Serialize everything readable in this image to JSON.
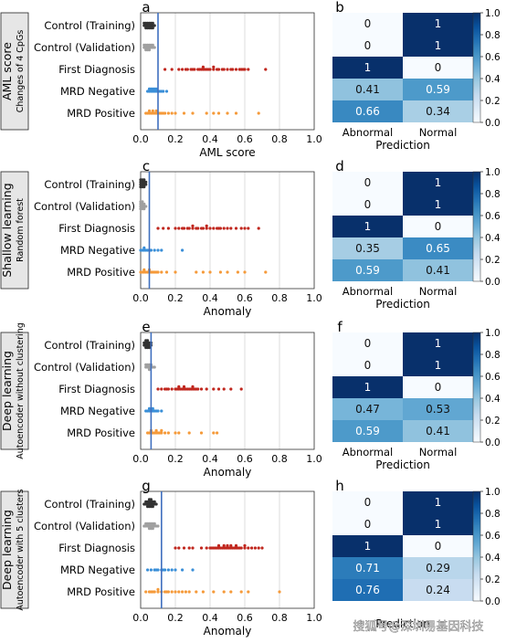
{
  "chart_data": [
    {
      "type": "scatter",
      "panel": "a",
      "side_title": "AML score",
      "side_subtitle": "Changes of 4 CpGs",
      "xlabel": "AML score",
      "xlim": [
        0,
        1
      ],
      "xticks": [
        "0.0",
        "0.2",
        "0.4",
        "0.6",
        "0.8",
        "1.0"
      ],
      "threshold": 0.1,
      "categories": [
        "Control (Training)",
        "Control (Validation)",
        "First Diagnosis",
        "MRD Negative",
        "MRD Positive"
      ],
      "colors": [
        "#333333",
        "#a0a0a0",
        "#c0271e",
        "#3a8fd8",
        "#f59a3a"
      ],
      "series": [
        {
          "values": [
            0.02,
            0.03,
            0.04,
            0.05,
            0.06,
            0.07,
            0.08,
            0.03,
            0.04,
            0.05,
            0.06,
            0.07,
            0.02,
            0.03,
            0.05,
            0.06,
            0.04,
            0.07
          ]
        },
        {
          "values": [
            0.02,
            0.03,
            0.04,
            0.05,
            0.06,
            0.07,
            0.08,
            0.03,
            0.04,
            0.05,
            0.06,
            0.02,
            0.03,
            0.04,
            0.05,
            0.07
          ]
        },
        {
          "values": [
            0.14,
            0.18,
            0.22,
            0.24,
            0.26,
            0.27,
            0.29,
            0.3,
            0.31,
            0.33,
            0.34,
            0.35,
            0.36,
            0.37,
            0.38,
            0.39,
            0.4,
            0.42,
            0.44,
            0.45,
            0.47,
            0.5,
            0.52,
            0.55,
            0.57,
            0.58,
            0.6,
            0.62,
            0.72,
            0.36,
            0.42,
            0.48,
            0.53,
            0.59
          ]
        },
        {
          "values": [
            0.04,
            0.05,
            0.06,
            0.07,
            0.08,
            0.09,
            0.1,
            0.11,
            0.12,
            0.13,
            0.15,
            0.05,
            0.07,
            0.09,
            0.06,
            0.08
          ]
        },
        {
          "values": [
            0.03,
            0.04,
            0.05,
            0.06,
            0.07,
            0.08,
            0.09,
            0.1,
            0.12,
            0.14,
            0.16,
            0.18,
            0.2,
            0.25,
            0.3,
            0.38,
            0.42,
            0.45,
            0.5,
            0.55,
            0.68,
            0.05,
            0.07,
            0.09,
            0.11,
            0.13
          ]
        }
      ]
    },
    {
      "type": "heatmap",
      "panel": "b",
      "xlabel": "Prediction",
      "columns": [
        "Abnormal",
        "Normal"
      ],
      "values": [
        [
          0,
          1
        ],
        [
          0,
          1
        ],
        [
          1,
          0
        ],
        [
          0.41,
          0.59
        ],
        [
          0.66,
          0.34
        ]
      ],
      "labels": [
        [
          "0",
          "1"
        ],
        [
          "0",
          "1"
        ],
        [
          "1",
          "0"
        ],
        [
          "0.41",
          "0.59"
        ],
        [
          "0.66",
          "0.34"
        ]
      ],
      "colorbar_ticks": [
        "0.0",
        "0.2",
        "0.4",
        "0.6",
        "0.8",
        "1.0"
      ],
      "colormap": "Blues"
    },
    {
      "type": "scatter",
      "panel": "c",
      "side_title": "Shallow learning",
      "side_subtitle": "Random forest",
      "xlabel": "Anomaly",
      "xlim": [
        0,
        1
      ],
      "xticks": [
        "0.0",
        "0.2",
        "0.4",
        "0.6",
        "0.8",
        "1.0"
      ],
      "threshold": 0.05,
      "categories": [
        "Control (Training)",
        "Control (Validation)",
        "First Diagnosis",
        "MRD Negative",
        "MRD Positive"
      ],
      "colors": [
        "#333333",
        "#a0a0a0",
        "#c0271e",
        "#3a8fd8",
        "#f59a3a"
      ],
      "series": [
        {
          "values": [
            0.0,
            0.01,
            0.02,
            0.03,
            0.0,
            0.01,
            0.02,
            0.0,
            0.01,
            0.02,
            0.03,
            0.0,
            0.01,
            0.02
          ]
        },
        {
          "values": [
            0.0,
            0.01,
            0.02,
            0.03,
            0.0,
            0.01,
            0.02,
            0.0,
            0.01,
            0.02,
            0.0,
            0.01
          ]
        },
        {
          "values": [
            0.1,
            0.13,
            0.16,
            0.2,
            0.22,
            0.24,
            0.25,
            0.27,
            0.28,
            0.3,
            0.32,
            0.33,
            0.35,
            0.36,
            0.38,
            0.4,
            0.42,
            0.44,
            0.46,
            0.48,
            0.5,
            0.52,
            0.55,
            0.58,
            0.6,
            0.62,
            0.68,
            0.3,
            0.38,
            0.45
          ]
        },
        {
          "values": [
            0.0,
            0.01,
            0.02,
            0.03,
            0.04,
            0.06,
            0.08,
            0.1,
            0.12,
            0.24,
            0.02,
            0.05
          ]
        },
        {
          "values": [
            0.0,
            0.01,
            0.02,
            0.03,
            0.04,
            0.05,
            0.06,
            0.07,
            0.08,
            0.1,
            0.12,
            0.15,
            0.2,
            0.32,
            0.36,
            0.4,
            0.46,
            0.5,
            0.56,
            0.6,
            0.72,
            0.02,
            0.05,
            0.09
          ]
        }
      ]
    },
    {
      "type": "heatmap",
      "panel": "d",
      "xlabel": "Prediction",
      "columns": [
        "Abnormal",
        "Normal"
      ],
      "values": [
        [
          0,
          1
        ],
        [
          0,
          1
        ],
        [
          1,
          0
        ],
        [
          0.35,
          0.65
        ],
        [
          0.59,
          0.41
        ]
      ],
      "labels": [
        [
          "0",
          "1"
        ],
        [
          "0",
          "1"
        ],
        [
          "1",
          "0"
        ],
        [
          "0.35",
          "0.65"
        ],
        [
          "0.59",
          "0.41"
        ]
      ],
      "colorbar_ticks": [
        "0.0",
        "0.2",
        "0.4",
        "0.6",
        "0.8",
        "1.0"
      ],
      "colormap": "Blues"
    },
    {
      "type": "scatter",
      "panel": "e",
      "side_title": "Deep learning",
      "side_subtitle": "Autoencoder without clustering",
      "xlabel": "Anomaly",
      "xlim": [
        0,
        1
      ],
      "xticks": [
        "0.0",
        "0.2",
        "0.4",
        "0.6",
        "0.8",
        "1.0"
      ],
      "threshold": 0.06,
      "categories": [
        "Control (Training)",
        "Control (Validation)",
        "First Diagnosis",
        "MRD Negative",
        "MRD Positive"
      ],
      "colors": [
        "#333333",
        "#a0a0a0",
        "#c0271e",
        "#3a8fd8",
        "#f59a3a"
      ],
      "series": [
        {
          "values": [
            0.02,
            0.03,
            0.04,
            0.05,
            0.06,
            0.03,
            0.04,
            0.05,
            0.02,
            0.03,
            0.04,
            0.05,
            0.06,
            0.03,
            0.04
          ]
        },
        {
          "values": [
            0.03,
            0.04,
            0.05,
            0.06,
            0.07,
            0.04,
            0.05,
            0.06,
            0.03,
            0.05,
            0.08
          ]
        },
        {
          "values": [
            0.1,
            0.12,
            0.14,
            0.15,
            0.16,
            0.18,
            0.2,
            0.21,
            0.22,
            0.23,
            0.24,
            0.25,
            0.26,
            0.27,
            0.28,
            0.29,
            0.3,
            0.31,
            0.32,
            0.33,
            0.35,
            0.38,
            0.42,
            0.45,
            0.48,
            0.52,
            0.58,
            0.25,
            0.3,
            0.22
          ]
        },
        {
          "values": [
            0.03,
            0.04,
            0.05,
            0.06,
            0.07,
            0.08,
            0.09,
            0.1,
            0.12,
            0.05,
            0.07
          ]
        },
        {
          "values": [
            0.04,
            0.05,
            0.06,
            0.07,
            0.08,
            0.09,
            0.1,
            0.11,
            0.12,
            0.14,
            0.16,
            0.2,
            0.22,
            0.28,
            0.35,
            0.42,
            0.44,
            0.06,
            0.09,
            0.12
          ]
        }
      ]
    },
    {
      "type": "heatmap",
      "panel": "f",
      "xlabel": "Prediction",
      "columns": [
        "Abnormal",
        "Normal"
      ],
      "values": [
        [
          0,
          1
        ],
        [
          0,
          1
        ],
        [
          1,
          0
        ],
        [
          0.47,
          0.53
        ],
        [
          0.59,
          0.41
        ]
      ],
      "labels": [
        [
          "0",
          "1"
        ],
        [
          "0",
          "1"
        ],
        [
          "1",
          "0"
        ],
        [
          "0.47",
          "0.53"
        ],
        [
          "0.59",
          "0.41"
        ]
      ],
      "colorbar_ticks": [
        "0.0",
        "0.2",
        "0.4",
        "0.6",
        "0.8",
        "1.0"
      ],
      "colormap": "Blues"
    },
    {
      "type": "scatter",
      "panel": "g",
      "side_title": "Deep learning",
      "side_subtitle": "Autoencoder with 5 clusters",
      "xlabel": "Anomaly",
      "xlim": [
        0,
        1
      ],
      "xticks": [
        "0.0",
        "0.2",
        "0.4",
        "0.6",
        "0.8",
        "1.0"
      ],
      "threshold": 0.12,
      "categories": [
        "Control (Training)",
        "Control (Validation)",
        "First Diagnosis",
        "MRD Negative",
        "MRD Positive"
      ],
      "colors": [
        "#333333",
        "#a0a0a0",
        "#c0271e",
        "#3a8fd8",
        "#f59a3a"
      ],
      "series": [
        {
          "values": [
            0.02,
            0.03,
            0.04,
            0.05,
            0.06,
            0.07,
            0.08,
            0.09,
            0.04,
            0.05,
            0.06,
            0.07,
            0.03,
            0.05,
            0.06,
            0.08,
            0.04,
            0.07,
            0.05,
            0.06
          ]
        },
        {
          "values": [
            0.02,
            0.03,
            0.04,
            0.05,
            0.06,
            0.07,
            0.08,
            0.09,
            0.1,
            0.04,
            0.05,
            0.06,
            0.07,
            0.08,
            0.05,
            0.06,
            0.03,
            0.07
          ]
        },
        {
          "values": [
            0.2,
            0.22,
            0.25,
            0.28,
            0.3,
            0.35,
            0.38,
            0.4,
            0.41,
            0.42,
            0.43,
            0.44,
            0.45,
            0.46,
            0.47,
            0.48,
            0.49,
            0.5,
            0.51,
            0.52,
            0.53,
            0.54,
            0.55,
            0.56,
            0.57,
            0.58,
            0.6,
            0.62,
            0.64,
            0.66,
            0.68,
            0.7,
            0.45,
            0.5,
            0.55,
            0.6,
            0.48,
            0.52
          ]
        },
        {
          "values": [
            0.04,
            0.06,
            0.08,
            0.1,
            0.12,
            0.14,
            0.16,
            0.18,
            0.2,
            0.24,
            0.3,
            0.09,
            0.13
          ]
        },
        {
          "values": [
            0.03,
            0.05,
            0.07,
            0.08,
            0.1,
            0.12,
            0.14,
            0.16,
            0.18,
            0.2,
            0.22,
            0.24,
            0.26,
            0.28,
            0.32,
            0.36,
            0.42,
            0.48,
            0.52,
            0.58,
            0.62,
            0.8,
            0.1,
            0.15,
            0.06
          ]
        }
      ]
    },
    {
      "type": "heatmap",
      "panel": "h",
      "xlabel": "Prediction",
      "columns": [],
      "values": [
        [
          0,
          1
        ],
        [
          0,
          1
        ],
        [
          1,
          0
        ],
        [
          0.71,
          0.29
        ],
        [
          0.76,
          0.24
        ]
      ],
      "labels": [
        [
          "0",
          "1"
        ],
        [
          "0",
          "1"
        ],
        [
          "1",
          "0"
        ],
        [
          "0.71",
          "0.29"
        ],
        [
          "0.76",
          "0.24"
        ]
      ],
      "colorbar_ticks": [
        "0.0",
        "0.2",
        "0.4",
        "0.6",
        "0.8",
        "1.0"
      ],
      "colormap": "Blues"
    }
  ],
  "watermark": "搜狐号@深圳易基因科技"
}
